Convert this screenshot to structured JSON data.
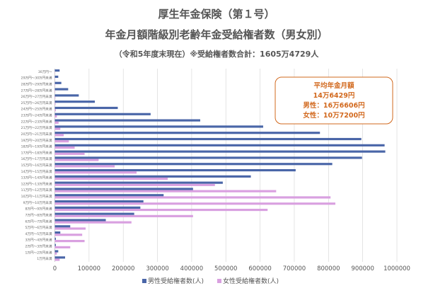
{
  "title": "厚生年金保険（第１号）",
  "subtitle": "年金月額階級別老齢年金受給権者数（男女別）",
  "note": "（令和5年度末現在）※受給権者数合計：1605万4729人",
  "summary_box": {
    "line1": "平均年金月額",
    "line2": "14万6429円",
    "line3": "男性：16万6606円",
    "line4": "女性：10万7200円",
    "color": "#d2691e"
  },
  "chart_data": {
    "type": "bar",
    "orientation": "horizontal",
    "categories": [
      "30万円～",
      "29万円～30万円未満",
      "28万円～29万円未満",
      "27万円～28万円未満",
      "26万円～27万円未満",
      "25万円～26万円未満",
      "24万円～25万円未満",
      "23万円～24万円未満",
      "22万円～23万円未満",
      "21万円～22万円未満",
      "20万円～21万円未満",
      "19万円～20万円未満",
      "18万円～19万円未満",
      "17万円～18万円未満",
      "16万円～17万円未満",
      "15万円～16万円未満",
      "14万円～15万円未満",
      "13万円～14万円未満",
      "12万円～13万円未満",
      "11万円～12万円未満",
      "10万円～11万円未満",
      "9万円～10万円未満",
      "8万円～9万円未満",
      "7万円～8万円未満",
      "6万円～7万円未満",
      "5万円～6万円未満",
      "4万円～5万円未満",
      "3万円～4万円未満",
      "2万円～3万円未満",
      "1万円～2万円未満",
      "1万円未満"
    ],
    "series": [
      {
        "name": "男性受給権者数(人)",
        "color": "#4a66a8",
        "values": [
          14000,
          10000,
          19000,
          39000,
          70000,
          117000,
          184000,
          280000,
          425000,
          609000,
          775000,
          896000,
          964000,
          966000,
          898000,
          811000,
          704000,
          573000,
          491000,
          404000,
          318000,
          259000,
          250000,
          232000,
          149000,
          45000,
          16000,
          3000,
          3000,
          10000,
          30000
        ]
      },
      {
        "name": "女性受給権者数(人)",
        "color": "#d9a0e0",
        "values": [
          500,
          500,
          1000,
          1000,
          1500,
          2000,
          3000,
          6000,
          11000,
          16000,
          26000,
          41000,
          58000,
          87000,
          128000,
          175000,
          239000,
          330000,
          468000,
          647000,
          806000,
          820000,
          622000,
          404000,
          224000,
          90000,
          80000,
          87000,
          45000,
          6000,
          14000
        ]
      }
    ],
    "xlim": [
      0,
      1000000
    ],
    "xticks": [
      "0",
      "100000",
      "200000",
      "300000",
      "400000",
      "500000",
      "600000",
      "700000",
      "800000",
      "900000",
      "1000000"
    ],
    "grid": true,
    "legend": "bottom"
  }
}
